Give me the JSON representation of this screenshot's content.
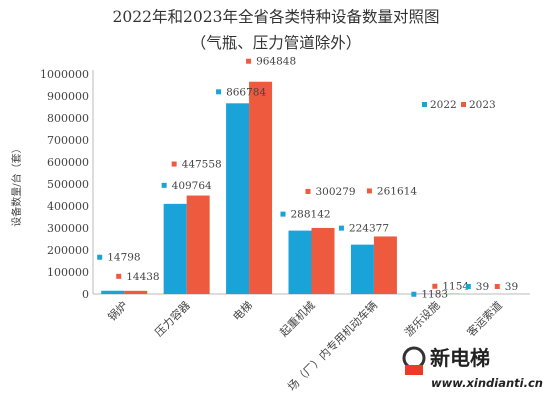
{
  "chart_data": {
    "type": "bar",
    "title": "2022年和2023年全省各类特种设备数量对照图",
    "subtitle": "（气瓶、压力管道除外）",
    "ylabel": "设备数量/台（套）",
    "xlabel": "",
    "ylim": [
      0,
      1000000
    ],
    "yticks": [
      "0",
      "100000",
      "200000",
      "300000",
      "400000",
      "500000",
      "600000",
      "700000",
      "800000",
      "900000",
      "1000000"
    ],
    "categories": [
      "锅炉",
      "压力容器",
      "电梯",
      "起重机械",
      "场（厂）内专用机动车辆",
      "游乐设施",
      "客运索道"
    ],
    "series": [
      {
        "name": "2022",
        "color": "#1aa3d9",
        "values": [
          14798,
          409764,
          866784,
          288142,
          224377,
          1183,
          39
        ],
        "labels": [
          "14798",
          "409764",
          "866784",
          "288142",
          "224377",
          "1183",
          "39"
        ]
      },
      {
        "name": "2023",
        "color": "#ee5a3e",
        "values": [
          14438,
          447558,
          964848,
          300279,
          261614,
          1154,
          39
        ],
        "labels": [
          "14438",
          "447558",
          "964848",
          "300279",
          "261614",
          "1154",
          "39"
        ]
      }
    ],
    "grid": false,
    "legend": "top-right"
  },
  "watermark": {
    "name": "新电梯",
    "url": "www.xindianti.cn"
  }
}
